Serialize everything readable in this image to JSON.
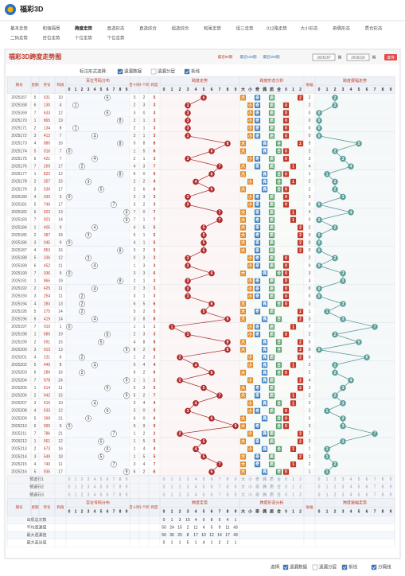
{
  "header": {
    "logo": "福彩3D",
    "nav": [
      "基本走势",
      "和值隔周",
      "跨度走势",
      "直选形态",
      "直选综合",
      "组选综合",
      "和尾走势",
      "组三走势",
      "012路走势",
      "大小形态",
      "奇偶形态",
      "质合形态",
      "二码走势",
      "百位走势",
      "十位走势",
      "个位走势"
    ],
    "active": 2
  },
  "toolbar": {
    "title": "福彩3D跨度走势图",
    "ranges": [
      "最近50期",
      "最近100期",
      "最近200期"
    ],
    "from": "2025167",
    "from_unit": "期",
    "to": "2025216",
    "to_unit": "期",
    "button": "查询"
  },
  "options": {
    "label": "标注形式选择:",
    "items": [
      {
        "text": "遗漏数据",
        "checked": true
      },
      {
        "text": "遗漏分层",
        "checked": false
      },
      {
        "text": "拆线",
        "checked": true
      }
    ]
  },
  "table": {
    "columns": [
      "期号",
      "星期",
      "奖号",
      "和值",
      "百位号码分布",
      "百十跨",
      "十个跨",
      "跨度",
      "跨度走势",
      "跨度形态分析",
      "振幅",
      "跨度振幅走势"
    ],
    "digits": [
      0,
      1,
      2,
      3,
      4,
      5,
      6,
      7,
      8,
      9
    ],
    "forms": [
      "大",
      "小",
      "奇",
      "偶",
      "质",
      "合",
      "0",
      "1",
      "2"
    ],
    "rows": [
      [
        "2025167",
        5,
        "631",
        10,
        3,
        2,
        5,
        2
      ],
      [
        "2025168",
        6,
        "130",
        4,
        2,
        3,
        3,
        2
      ],
      [
        "2025169",
        7,
        "633",
        12,
        3,
        0,
        3,
        0
      ],
      [
        "2025170",
        1,
        "865",
        19,
        2,
        1,
        3,
        0
      ],
      [
        "2025171",
        2,
        "134",
        8,
        2,
        1,
        3,
        0
      ],
      [
        "2025172",
        3,
        "412",
        7,
        3,
        1,
        3,
        0
      ],
      [
        "2025173",
        4,
        "880",
        16,
        0,
        8,
        8,
        5
      ],
      [
        "2025174",
        5,
        "016",
        7,
        1,
        5,
        6,
        2
      ],
      [
        "2025175",
        6,
        "421",
        7,
        2,
        1,
        3,
        3
      ],
      [
        "2025176",
        7,
        "269",
        17,
        4,
        3,
        7,
        4
      ],
      [
        "2025177",
        1,
        "822",
        12,
        6,
        0,
        6,
        1
      ],
      [
        "2025178",
        2,
        "357",
        15,
        2,
        2,
        4,
        2
      ],
      [
        "2025179",
        3,
        "539",
        17,
        2,
        6,
        6,
        2
      ],
      [
        "2025180",
        4,
        "030",
        3,
        3,
        3,
        3,
        3
      ],
      [
        "2025181",
        5,
        "746",
        17,
        3,
        2,
        3,
        0
      ],
      [
        "2025182",
        6,
        "922",
        13,
        7,
        0,
        7,
        4
      ],
      [
        "2025183",
        7,
        "923",
        14,
        7,
        1,
        7,
        0
      ],
      [
        "2025184",
        1,
        "405",
        9,
        4,
        5,
        5,
        2
      ],
      [
        "2025185",
        2,
        "387",
        18,
        5,
        1,
        5,
        0
      ],
      [
        "2025186",
        3,
        "045",
        9,
        4,
        1,
        5,
        0
      ],
      [
        "2025187",
        4,
        "853",
        16,
        3,
        2,
        5,
        0
      ],
      [
        "2025188",
        5,
        "336",
        12,
        0,
        3,
        3,
        2
      ],
      [
        "2025189",
        6,
        "452",
        11,
        1,
        3,
        3,
        0
      ],
      [
        "2025190",
        7,
        "036",
        9,
        3,
        3,
        6,
        3
      ],
      [
        "2025191",
        1,
        "865",
        19,
        2,
        1,
        3,
        3
      ],
      [
        "2025192",
        2,
        "425",
        11,
        2,
        3,
        3,
        0
      ],
      [
        "2025193",
        3,
        "254",
        11,
        3,
        1,
        3,
        0
      ],
      [
        "2025194",
        4,
        "283",
        13,
        6,
        5,
        6,
        3
      ],
      [
        "2025195",
        5,
        "275",
        14,
        5,
        2,
        5,
        1
      ],
      [
        "2025196",
        6,
        "419",
        14,
        3,
        8,
        8,
        3
      ],
      [
        "2025197",
        7,
        "010",
        1,
        1,
        1,
        1,
        7
      ],
      [
        "2025198",
        1,
        "685",
        19,
        2,
        3,
        3,
        2
      ],
      [
        "2025199",
        2,
        "591",
        15,
        4,
        8,
        8,
        5
      ],
      [
        "2025200",
        3,
        "913",
        13,
        8,
        2,
        8,
        0
      ],
      [
        "2025201",
        4,
        "231",
        6,
        1,
        2,
        2,
        6
      ],
      [
        "2025202",
        5,
        "440",
        8,
        0,
        4,
        4,
        2
      ],
      [
        "2025203",
        6,
        "286",
        16,
        6,
        2,
        6,
        2
      ],
      [
        "2025204",
        7,
        "978",
        24,
        2,
        1,
        2,
        4
      ],
      [
        "2025205",
        1,
        "614",
        11,
        5,
        3,
        5,
        3
      ],
      [
        "2025206",
        2,
        "942",
        15,
        5,
        2,
        7,
        2
      ],
      [
        "2025207",
        3,
        "415",
        10,
        3,
        4,
        4,
        3
      ],
      [
        "2025208",
        4,
        "633",
        12,
        3,
        0,
        3,
        1
      ],
      [
        "2025209",
        5,
        "399",
        21,
        6,
        0,
        6,
        3
      ],
      [
        "2025210",
        6,
        "090",
        9,
        9,
        9,
        9,
        3
      ],
      [
        "2025211",
        7,
        "786",
        21,
        1,
        2,
        2,
        7
      ],
      [
        "2025212",
        1,
        "561",
        12,
        1,
        5,
        5,
        3
      ],
      [
        "2025213",
        2,
        "673",
        16,
        1,
        4,
        4,
        1
      ],
      [
        "2025214",
        3,
        "549",
        18,
        1,
        5,
        5,
        1
      ],
      [
        "2025215",
        4,
        "740",
        11,
        3,
        4,
        7,
        2
      ],
      [
        "2025216",
        5,
        "935",
        17,
        6,
        2,
        6,
        1
      ]
    ],
    "preselect": [
      "预选行1",
      "预选行2",
      "预选行3"
    ],
    "stats": [
      {
        "name": "出现总次数",
        "values": [
          0,
          1,
          3,
          15,
          4,
          9,
          8,
          5,
          4,
          1
        ]
      },
      {
        "name": "平均遗漏值",
        "values": [
          50,
          24,
          15,
          2,
          11,
          4,
          5,
          9,
          11,
          43
        ]
      },
      {
        "name": "最大遗漏值",
        "values": [
          50,
          30,
          20,
          8,
          17,
          10,
          12,
          14,
          17,
          43
        ]
      },
      {
        "name": "最大连出值",
        "values": [
          0,
          1,
          1,
          5,
          1,
          4,
          1,
          2,
          2,
          1
        ]
      }
    ]
  },
  "footer": {
    "label": "选择:",
    "items": [
      {
        "text": "遗漏数据",
        "checked": true
      },
      {
        "text": "遗漏分层",
        "checked": false
      },
      {
        "text": "拆线",
        "checked": true
      },
      {
        "text": "分隔线",
        "checked": true
      }
    ]
  }
}
